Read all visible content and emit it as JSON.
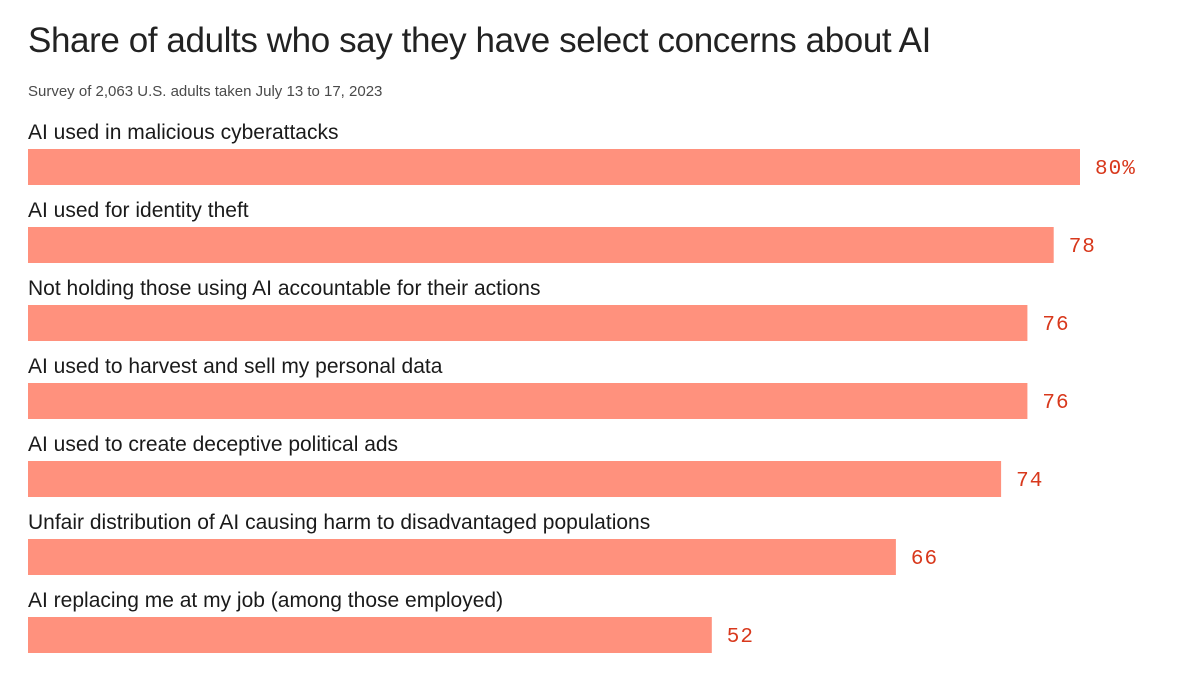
{
  "header": {
    "title": "Share of adults who say they have select concerns about AI",
    "subtitle": "Survey of 2,063 U.S. adults taken July 13 to 17, 2023"
  },
  "colors": {
    "bar": "#FF917D",
    "value_label": "#D8381C"
  },
  "chart_data": {
    "type": "bar",
    "orientation": "horizontal",
    "title": "Share of adults who say they have select concerns about AI",
    "subtitle": "Survey of 2,063 U.S. adults taken July 13 to 17, 2023",
    "categories": [
      "AI used in malicious cyberattacks",
      "AI used for identity theft",
      "Not holding those using AI accountable for their actions",
      "AI used to harvest and sell my personal data",
      "AI used to create deceptive political ads",
      "Unfair distribution of AI causing harm to disadvantaged populations",
      "AI replacing me at my job (among those employed)"
    ],
    "values": [
      80,
      78,
      76,
      76,
      74,
      66,
      52
    ],
    "value_labels": [
      "80%",
      "78",
      "76",
      "76",
      "74",
      "66",
      "52"
    ],
    "unit": "%",
    "grid": false,
    "legend": "none"
  }
}
